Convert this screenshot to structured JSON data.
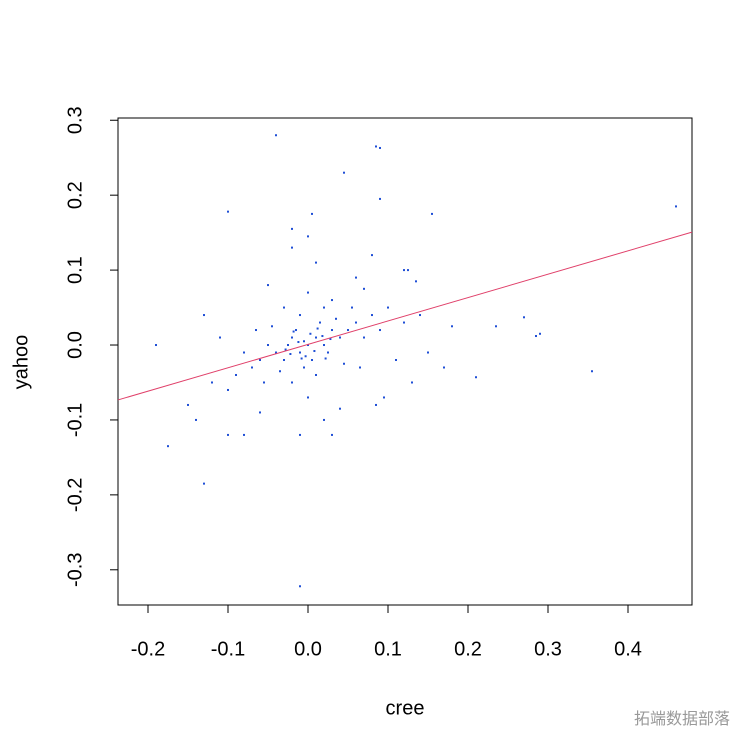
{
  "chart_data": {
    "type": "scatter",
    "x_label": "cree",
    "y_label": "yahoo",
    "xlim": [
      -0.2375,
      0.48
    ],
    "ylim": [
      -0.347,
      0.303
    ],
    "xticks": [
      -0.2,
      -0.1,
      {
        "value": 0,
        "label": "0.0"
      },
      0.1,
      0.2,
      0.3,
      0.4
    ],
    "yticks": [
      -0.3,
      -0.2,
      -0.1,
      {
        "value": 0,
        "label": "0.0"
      },
      0.1,
      0.2,
      0.3
    ],
    "series": [
      {
        "color": "#1f4fd6",
        "x": [
          0.46,
          0.355,
          0.285,
          0.27,
          0.235,
          0.29,
          -0.19,
          -0.175,
          -0.13,
          -0.01,
          -0.04,
          0.085,
          0.09,
          0.045,
          0.09,
          0.155,
          0.005,
          -0.1,
          0.21,
          0.18,
          0,
          0.01,
          -0.01,
          0.02,
          -0.02,
          0.005,
          -0.015,
          0.03,
          -0.03,
          0.015,
          -0.005,
          0.025,
          -0.025,
          0.04,
          -0.04,
          0.01,
          -0.01,
          0.035,
          -0.035,
          0.05,
          -0.05,
          0.02,
          -0.02,
          0.06,
          -0.06,
          0.045,
          -0.045,
          0.07,
          -0.07,
          0.03,
          -0.03,
          0.055,
          -0.055,
          0.08,
          -0.08,
          0.065,
          -0.065,
          0,
          0,
          0.09,
          -0.09,
          0.1,
          -0.1,
          0.11,
          -0.11,
          0.12,
          -0.12,
          0.13,
          -0.13,
          0.01,
          -0.02,
          0.02,
          -0.01,
          0.06,
          0.07,
          -0.05,
          -0.06,
          0.04,
          0.14,
          0.15,
          -0.15,
          -0.14,
          0.12,
          0.125,
          0.135,
          0,
          -0.02,
          0.03,
          -0.08,
          -0.1,
          0.085,
          0.17,
          0.08,
          0.095,
          -0.005,
          0.008,
          -0.012,
          0.018,
          -0.022,
          0.012,
          -0.008,
          0.028,
          -0.028,
          0.003,
          -0.003,
          0.022,
          -0.018
        ],
        "y": [
          0.185,
          -0.035,
          0.012,
          0.037,
          0.025,
          0.015,
          0.0,
          -0.135,
          -0.185,
          -0.322,
          0.28,
          0.265,
          0.263,
          0.23,
          0.195,
          0.175,
          0.175,
          0.178,
          -0.043,
          0.025,
          0,
          0.01,
          -0.01,
          0,
          0.01,
          -0.02,
          0.02,
          0.02,
          -0.02,
          0.03,
          -0.03,
          -0.01,
          0,
          0.01,
          -0.01,
          -0.04,
          0.04,
          0.035,
          -0.035,
          0.02,
          0,
          0.05,
          -0.05,
          0.03,
          -0.02,
          -0.025,
          0.025,
          0.01,
          -0.03,
          0.06,
          0.05,
          0.05,
          -0.05,
          0.04,
          -0.01,
          -0.03,
          0.02,
          0.07,
          -0.07,
          0.02,
          -0.04,
          0.05,
          -0.06,
          -0.02,
          0.01,
          0.03,
          -0.05,
          -0.05,
          0.04,
          0.11,
          0.13,
          -0.1,
          -0.12,
          0.09,
          0.075,
          0.08,
          -0.09,
          -0.085,
          0.04,
          -0.01,
          -0.08,
          -0.1,
          0.1,
          0.1,
          0.085,
          0.145,
          0.155,
          -0.12,
          -0.12,
          -0.12,
          -0.08,
          -0.03,
          0.12,
          -0.07,
          0.005,
          -0.008,
          0.004,
          0.012,
          -0.012,
          0.022,
          -0.018,
          0.008,
          -0.006,
          0.015,
          -0.015,
          -0.018,
          0.018
        ]
      }
    ],
    "fit_line": {
      "color": "#e0406a",
      "x": [
        -0.2375,
        0.48
      ],
      "y": [
        -0.0733,
        0.1507
      ]
    }
  },
  "watermark": "拓端数据部落"
}
